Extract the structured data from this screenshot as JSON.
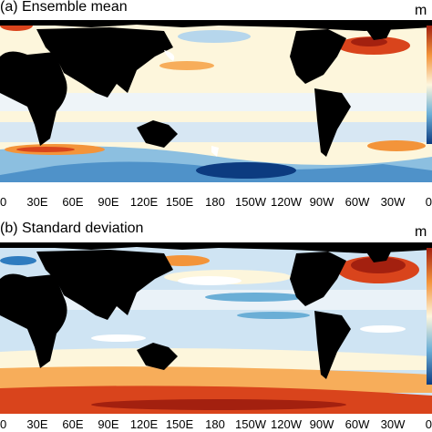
{
  "panels": [
    {
      "title": "(a) Ensemble mean",
      "unit": "m"
    },
    {
      "title": "(b) Standard deviation",
      "unit": "m"
    }
  ],
  "longitude_ticks": [
    "0",
    "30E",
    "60E",
    "90E",
    "120E",
    "150E",
    "180",
    "150W",
    "120W",
    "90W",
    "60W",
    "30W",
    "0"
  ],
  "colors": {
    "land": "#000000",
    "ocean_base_a": "#fdf6dc",
    "ocean_base_b": "#cfe4f3",
    "deep_red": "#a3200f",
    "red": "#d9441c",
    "orange": "#f3943a",
    "light_orange": "#fdd79a",
    "pale": "#fdf6dc",
    "light_blue": "#cfe4f3",
    "blue": "#6aaed6",
    "mid_blue": "#2f7cbf",
    "dark_blue": "#0c3b80"
  }
}
